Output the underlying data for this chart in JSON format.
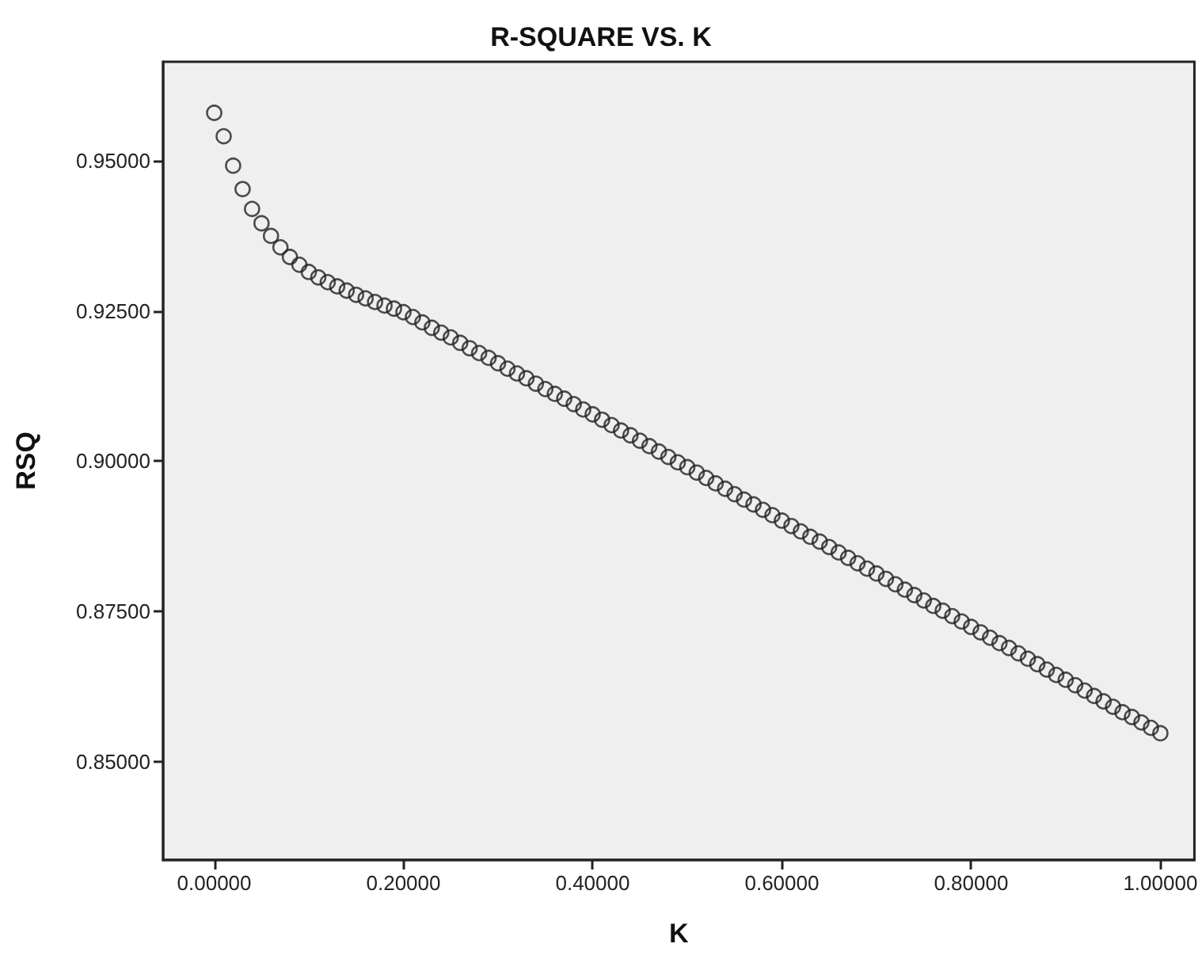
{
  "chart_data": {
    "type": "scatter",
    "title": "R-SQUARE VS. K",
    "xlabel": "K",
    "ylabel": "RSQ",
    "marker": "circle",
    "x": [
      0,
      0.01,
      0.02,
      0.03,
      0.04,
      0.05,
      0.06,
      0.07,
      0.08,
      0.09,
      0.1,
      0.11,
      0.12,
      0.13,
      0.14,
      0.15,
      0.16,
      0.17,
      0.18,
      0.19,
      0.2,
      0.21,
      0.22,
      0.23,
      0.24,
      0.25,
      0.26,
      0.27,
      0.28,
      0.29,
      0.3,
      0.31,
      0.32,
      0.33,
      0.34,
      0.35,
      0.36,
      0.37,
      0.38,
      0.39,
      0.4,
      0.41,
      0.42,
      0.43,
      0.44,
      0.45,
      0.46,
      0.47,
      0.48,
      0.49,
      0.5,
      0.51,
      0.52,
      0.53,
      0.54,
      0.55,
      0.56,
      0.57,
      0.58,
      0.59,
      0.6,
      0.61,
      0.62,
      0.63,
      0.64,
      0.65,
      0.66,
      0.67,
      0.68,
      0.69,
      0.7,
      0.71,
      0.72,
      0.73,
      0.74,
      0.75,
      0.76,
      0.77,
      0.78,
      0.79,
      0.8,
      0.81,
      0.82,
      0.83,
      0.84,
      0.85,
      0.86,
      0.87,
      0.88,
      0.89,
      0.9,
      0.91,
      0.92,
      0.93,
      0.94,
      0.95,
      0.96,
      0.97,
      0.98,
      0.99,
      1
    ],
    "series": [
      {
        "color": "#222222",
        "values": [
          0.958,
          0.9541,
          0.9492,
          0.9453,
          0.942,
          0.9396,
          0.9375,
          0.9356,
          0.934,
          0.9327,
          0.9315,
          0.9306,
          0.9298,
          0.9291,
          0.9284,
          0.9277,
          0.9271,
          0.9265,
          0.9259,
          0.9254,
          0.9248,
          0.924,
          0.9231,
          0.9222,
          0.9214,
          0.9206,
          0.9197,
          0.9188,
          0.918,
          0.9172,
          0.9163,
          0.9154,
          0.9146,
          0.9138,
          0.9129,
          0.912,
          0.9112,
          0.9104,
          0.9095,
          0.9086,
          0.9078,
          0.9069,
          0.906,
          0.9051,
          0.9043,
          0.9034,
          0.9025,
          0.9016,
          0.9007,
          0.8998,
          0.899,
          0.8981,
          0.8972,
          0.8963,
          0.8954,
          0.8945,
          0.8936,
          0.8928,
          0.8919,
          0.891,
          0.8901,
          0.8892,
          0.8883,
          0.8874,
          0.8866,
          0.8857,
          0.8848,
          0.8839,
          0.883,
          0.8821,
          0.8813,
          0.8804,
          0.8795,
          0.8786,
          0.8777,
          0.8768,
          0.8759,
          0.8751,
          0.8742,
          0.8733,
          0.8724,
          0.8715,
          0.8706,
          0.8697,
          0.8689,
          0.868,
          0.8671,
          0.8662,
          0.8653,
          0.8644,
          0.8636,
          0.8627,
          0.8618,
          0.8609,
          0.86,
          0.8591,
          0.8582,
          0.8574,
          0.8565,
          0.8556,
          0.8547
        ]
      }
    ],
    "xlim": [
      -0.054,
      1.036
    ],
    "ylim": [
      0.8336,
      0.9665
    ],
    "xticks": [
      {
        "value": 0,
        "label": "0.00000"
      },
      {
        "value": 0.2,
        "label": "0.20000"
      },
      {
        "value": 0.4,
        "label": "0.40000"
      },
      {
        "value": 0.6,
        "label": "0.60000"
      },
      {
        "value": 0.8,
        "label": "0.80000"
      },
      {
        "value": 1,
        "label": "1.00000"
      }
    ],
    "yticks": [
      {
        "value": 0.85,
        "label": "0.85000"
      },
      {
        "value": 0.875,
        "label": "0.87500"
      },
      {
        "value": 0.9,
        "label": "0.90000"
      },
      {
        "value": 0.925,
        "label": "0.92500"
      },
      {
        "value": 0.95,
        "label": "0.95000"
      }
    ]
  }
}
